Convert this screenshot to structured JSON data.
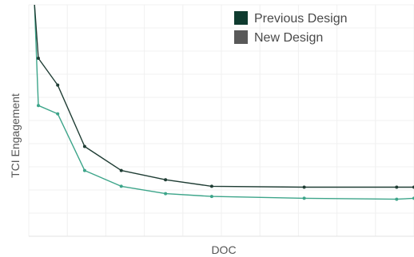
{
  "chart_data": {
    "type": "line",
    "xlabel": "DOC",
    "ylabel": "TCI Engagement",
    "xlim": [
      0,
      100
    ],
    "ylim": [
      0,
      100
    ],
    "x_tick_labels": [],
    "y_tick_labels": [],
    "grid": true,
    "legend_position": "top-right",
    "series": [
      {
        "name": "Previous Design",
        "color": "#1f3d34",
        "x": [
          1.5,
          2.5,
          7.5,
          14.5,
          24,
          35.5,
          47.5,
          71.5,
          95.5,
          100
        ],
        "y": [
          100,
          76.9,
          65.3,
          38.8,
          28.4,
          24.4,
          21.6,
          21.2,
          21.2,
          21.2
        ]
      },
      {
        "name": "New Design",
        "color": "#3da58a",
        "x": [
          1.5,
          2.5,
          7.5,
          14.5,
          24,
          35.5,
          47.5,
          71.5,
          95.5,
          100
        ],
        "y": [
          100,
          56.5,
          52.9,
          28.4,
          21.6,
          18.4,
          17.2,
          16.4,
          16.0,
          16.4
        ]
      }
    ]
  }
}
